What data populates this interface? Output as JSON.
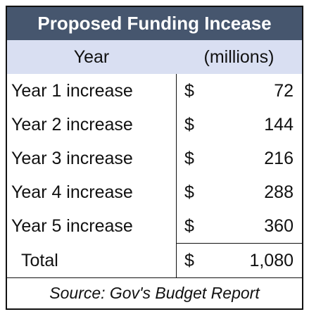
{
  "chart_data": {
    "type": "table",
    "title": "Proposed Funding Incease",
    "columns": [
      "Year",
      "(millions)"
    ],
    "currency_symbol": "$",
    "rows": [
      {
        "label": "Year 1 increase",
        "value": "72"
      },
      {
        "label": "Year 2 increase",
        "value": "144"
      },
      {
        "label": "Year 3 increase",
        "value": "216"
      },
      {
        "label": "Year 4 increase",
        "value": "288"
      },
      {
        "label": "Year 5 increase",
        "value": "360"
      }
    ],
    "total": {
      "label": "Total",
      "value": "1,080"
    },
    "source": "Source: Gov's Budget Report"
  }
}
